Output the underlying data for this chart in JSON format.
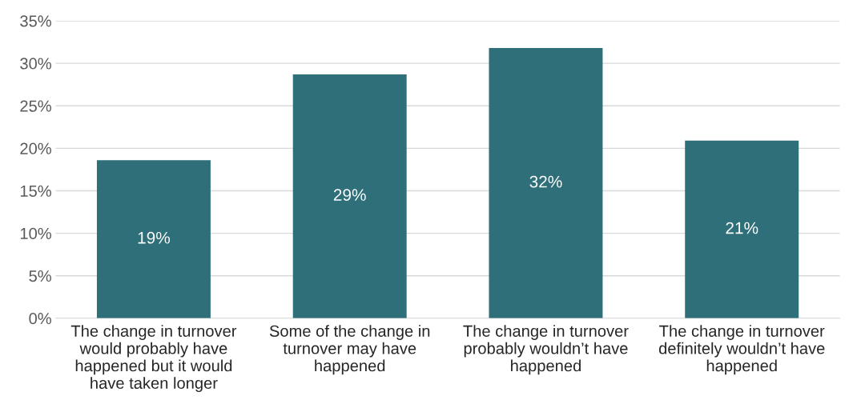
{
  "chart_data": {
    "type": "bar",
    "categories": [
      "The change in turnover would probably have happened but it would have taken longer",
      "Some of the change in turnover may have happened",
      "The change in turnover probably wouldn’t have happened",
      "The change in turnover definitely wouldn’t have happened"
    ],
    "values": [
      18.6,
      28.7,
      31.8,
      20.9
    ],
    "value_labels": [
      "19%",
      "29%",
      "32%",
      "21%"
    ],
    "color": "#2e6f79",
    "ylim": [
      0,
      35
    ],
    "yticks": [
      {
        "value": 0,
        "label": "0%"
      },
      {
        "value": 5,
        "label": "5%"
      },
      {
        "value": 10,
        "label": "10%"
      },
      {
        "value": 15,
        "label": "15%"
      },
      {
        "value": 20,
        "label": "20%"
      },
      {
        "value": 25,
        "label": "25%"
      },
      {
        "value": 30,
        "label": "30%"
      },
      {
        "value": 35,
        "label": "35%"
      }
    ],
    "grid": "y"
  }
}
